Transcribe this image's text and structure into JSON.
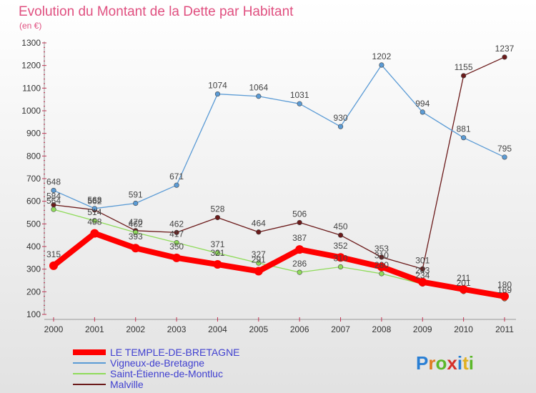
{
  "chart_data": {
    "type": "line",
    "title": "Evolution du Montant de la Dette par Habitant",
    "subtitle": "(en €)",
    "x": [
      "2000",
      "2001",
      "2002",
      "2003",
      "2004",
      "2005",
      "2006",
      "2007",
      "2008",
      "2009",
      "2010",
      "2011"
    ],
    "ylim": [
      100,
      1300
    ],
    "yticks": [
      100,
      200,
      300,
      400,
      500,
      600,
      700,
      800,
      900,
      1000,
      1100,
      1200,
      1300
    ],
    "grid": false,
    "legend_position": "bottom-left",
    "series": [
      {
        "name": "LE TEMPLE-DE-BRETAGNE",
        "color": "#ff0000",
        "values": [
          315,
          458,
          393,
          350,
          321,
          291,
          387,
          352,
          310,
          243,
          211,
          180
        ]
      },
      {
        "name": "Vigneux-de-Bretagne",
        "color": "#5b9bd5",
        "values": [
          648,
          568,
          591,
          671,
          1074,
          1064,
          1031,
          930,
          1202,
          994,
          881,
          795
        ]
      },
      {
        "name": "Saint-Étienne-de-Montluc",
        "color": "#8fdb5a",
        "values": [
          564,
          514,
          462,
          417,
          371,
          327,
          286,
          310,
          280,
          234,
          201,
          169
        ]
      },
      {
        "name": "Malville",
        "color": "#6b1a1a",
        "values": [
          584,
          562,
          470,
          462,
          528,
          464,
          506,
          450,
          353,
          301,
          1155,
          1237
        ]
      }
    ],
    "logo": "Proxiti"
  }
}
